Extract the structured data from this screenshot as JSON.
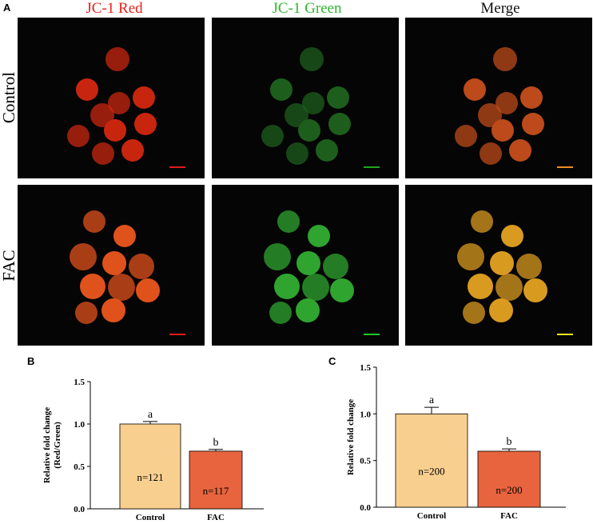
{
  "figure": {
    "panel_labels": [
      "A",
      "B",
      "C"
    ],
    "columns": [
      "JC-1 Red",
      "JC-1 Green",
      "Merge"
    ],
    "rows": [
      "Control",
      "FAC"
    ]
  },
  "chart_data": [
    {
      "type": "bar",
      "ylabel": [
        "Relative fold change",
        "(Red/Green)"
      ],
      "categories": [
        "Control",
        "FAC"
      ],
      "values": [
        1.0,
        0.68
      ],
      "errors": [
        0.03,
        0.02
      ],
      "colors": [
        "#f9cf8f",
        "#e8643e"
      ],
      "annotations": [
        "a",
        "b"
      ],
      "value_notes": [
        "n=121",
        "n=117"
      ],
      "ylim": [
        0,
        1.5
      ],
      "yticks": [
        {
          "value": 0,
          "label": "0.0"
        },
        {
          "value": 0.5,
          "label": "0.5"
        },
        {
          "value": 1,
          "label": "1.0"
        },
        {
          "value": 1.5,
          "label": "1.5"
        }
      ]
    },
    {
      "type": "bar",
      "ylabel": [
        "Relative fold change"
      ],
      "categories": [
        "Control",
        "FAC"
      ],
      "values": [
        1.0,
        0.6
      ],
      "errors": [
        0.07,
        0.025
      ],
      "colors": [
        "#f9cf8f",
        "#e8643e"
      ],
      "annotations": [
        "a",
        "b"
      ],
      "value_notes": [
        "n=200",
        "n=200"
      ],
      "ylim": [
        0,
        1.5
      ],
      "yticks": [
        {
          "value": 0,
          "label": "0.0"
        },
        {
          "value": 0.5,
          "label": "0.5"
        },
        {
          "value": 1,
          "label": "1.0"
        },
        {
          "value": 1.5,
          "label": "1.5"
        }
      ]
    }
  ]
}
